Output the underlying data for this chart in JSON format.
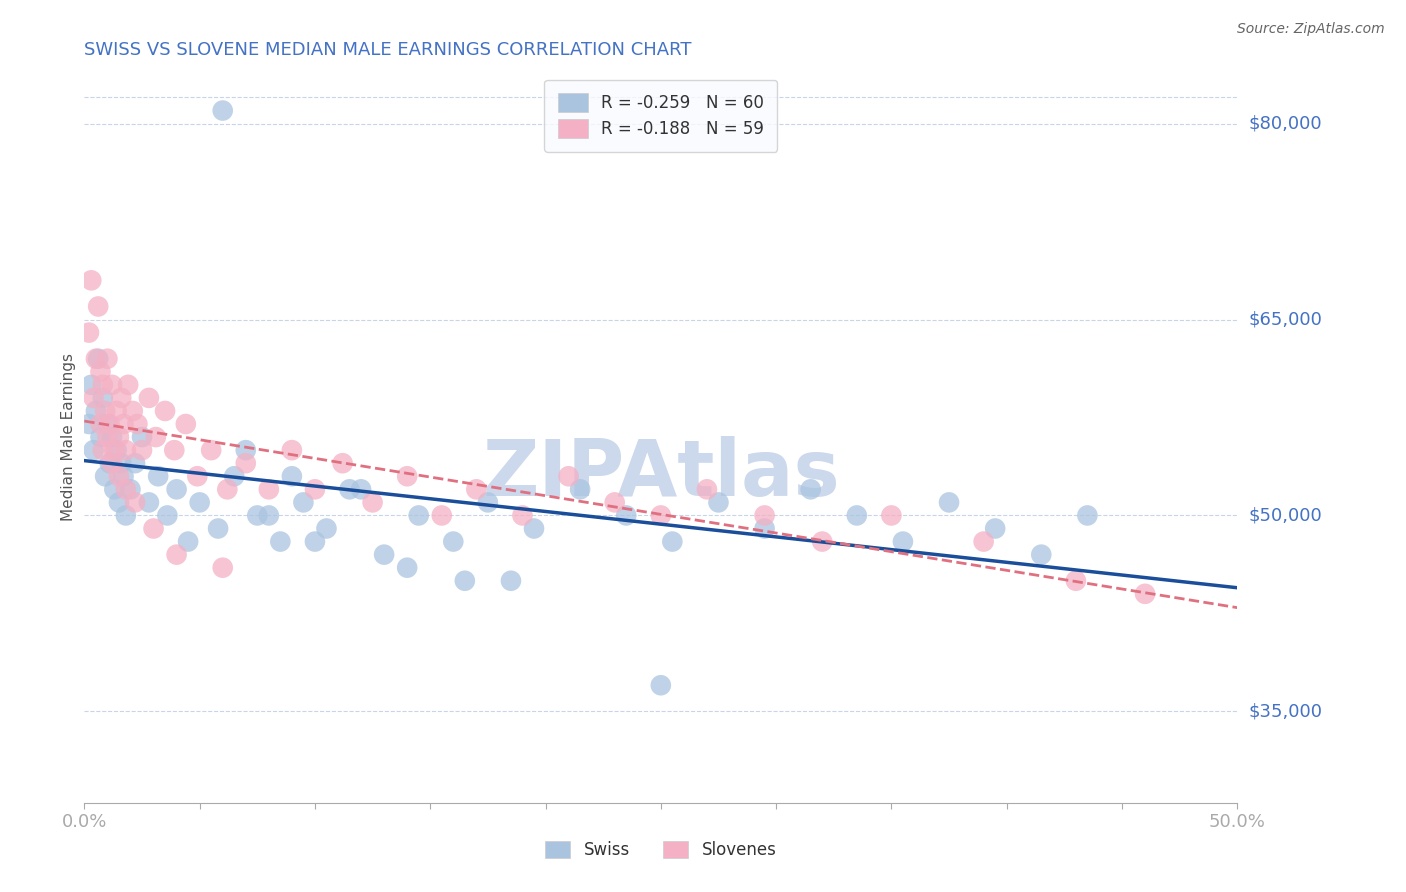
{
  "title": "SWISS VS SLOVENE MEDIAN MALE EARNINGS CORRELATION CHART",
  "source": "Source: ZipAtlas.com",
  "ylabel": "Median Male Earnings",
  "xlim": [
    0.0,
    0.5
  ],
  "ylim": [
    28000,
    84000
  ],
  "xticks": [
    0.0,
    0.05,
    0.1,
    0.15,
    0.2,
    0.25,
    0.3,
    0.35,
    0.4,
    0.45,
    0.5
  ],
  "xticklabels": [
    "0.0%",
    "",
    "",
    "",
    "",
    "",
    "",
    "",
    "",
    "",
    "50.0%"
  ],
  "ytick_positions": [
    35000,
    50000,
    65000,
    80000
  ],
  "ytick_labels": [
    "$35,000",
    "$50,000",
    "$65,000",
    "$80,000"
  ],
  "swiss_color": "#aac4e0",
  "slovene_color": "#f4b0c4",
  "swiss_line_color": "#1a4e9a",
  "slovene_line_color": "#e07080",
  "R_swiss": -0.259,
  "N_swiss": 60,
  "R_slovene": -0.188,
  "N_slovene": 59,
  "title_color": "#4472c4",
  "axis_label_color": "#555555",
  "tick_color": "#4472c4",
  "watermark": "ZIPAtlas",
  "watermark_color": "#ccd8ec",
  "swiss_x": [
    0.002,
    0.003,
    0.004,
    0.005,
    0.006,
    0.007,
    0.008,
    0.009,
    0.01,
    0.011,
    0.012,
    0.013,
    0.014,
    0.015,
    0.016,
    0.017,
    0.018,
    0.02,
    0.022,
    0.025,
    0.028,
    0.032,
    0.036,
    0.04,
    0.045,
    0.05,
    0.058,
    0.065,
    0.075,
    0.085,
    0.095,
    0.105,
    0.115,
    0.13,
    0.145,
    0.16,
    0.175,
    0.195,
    0.215,
    0.235,
    0.255,
    0.275,
    0.295,
    0.315,
    0.335,
    0.355,
    0.375,
    0.395,
    0.415,
    0.435,
    0.06,
    0.07,
    0.08,
    0.09,
    0.1,
    0.12,
    0.14,
    0.165,
    0.185,
    0.25
  ],
  "swiss_y": [
    57000,
    60000,
    55000,
    58000,
    62000,
    56000,
    59000,
    53000,
    57000,
    54000,
    56000,
    52000,
    55000,
    51000,
    54000,
    53000,
    50000,
    52000,
    54000,
    56000,
    51000,
    53000,
    50000,
    52000,
    48000,
    51000,
    49000,
    53000,
    50000,
    48000,
    51000,
    49000,
    52000,
    47000,
    50000,
    48000,
    51000,
    49000,
    52000,
    50000,
    48000,
    51000,
    49000,
    52000,
    50000,
    48000,
    51000,
    49000,
    47000,
    50000,
    81000,
    55000,
    50000,
    53000,
    48000,
    52000,
    46000,
    45000,
    45000,
    37000
  ],
  "slovene_x": [
    0.002,
    0.003,
    0.004,
    0.005,
    0.006,
    0.007,
    0.008,
    0.009,
    0.01,
    0.011,
    0.012,
    0.013,
    0.014,
    0.015,
    0.016,
    0.017,
    0.018,
    0.019,
    0.021,
    0.023,
    0.025,
    0.028,
    0.031,
    0.035,
    0.039,
    0.044,
    0.049,
    0.055,
    0.062,
    0.07,
    0.08,
    0.09,
    0.1,
    0.112,
    0.125,
    0.14,
    0.155,
    0.17,
    0.19,
    0.21,
    0.23,
    0.25,
    0.27,
    0.295,
    0.32,
    0.35,
    0.39,
    0.43,
    0.46,
    0.007,
    0.008,
    0.01,
    0.012,
    0.015,
    0.018,
    0.022,
    0.03,
    0.04,
    0.06
  ],
  "slovene_y": [
    64000,
    68000,
    59000,
    62000,
    66000,
    61000,
    60000,
    58000,
    62000,
    57000,
    60000,
    55000,
    58000,
    56000,
    59000,
    57000,
    55000,
    60000,
    58000,
    57000,
    55000,
    59000,
    56000,
    58000,
    55000,
    57000,
    53000,
    55000,
    52000,
    54000,
    52000,
    55000,
    52000,
    54000,
    51000,
    53000,
    50000,
    52000,
    50000,
    53000,
    51000,
    50000,
    52000,
    50000,
    48000,
    50000,
    48000,
    45000,
    44000,
    57000,
    55000,
    56000,
    54000,
    53000,
    52000,
    51000,
    49000,
    47000,
    46000
  ],
  "background_color": "#ffffff",
  "grid_color": "#c8d4e8",
  "legend_box_color": "#f8faff"
}
